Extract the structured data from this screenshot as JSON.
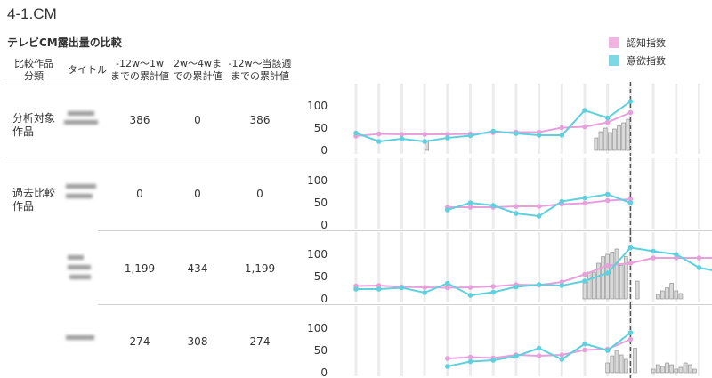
{
  "page_title": "4-1.CM",
  "section_title": "テレビCM露出量の比較",
  "legend": {
    "items": [
      {
        "label": "認知指数",
        "color": "#f0b4e0"
      },
      {
        "label": "意欲指数",
        "color": "#7dd8e4"
      }
    ]
  },
  "columns": {
    "category": "比較作品\n分類",
    "title": "タイトル",
    "total_12w_1w": "-12w〜1w\nまでの累計値",
    "total_2w_4w": "2w〜4wま\nでの累計値",
    "total_12w_current": "-12w〜当該週\nまでの累計値"
  },
  "rows": [
    {
      "category": "分析対象\n作品",
      "total_12w_1w": "386",
      "total_2w_4w": "0",
      "total_12w_current": "386"
    },
    {
      "category": "過去比較\n作品",
      "total_12w_1w": "0",
      "total_2w_4w": "0",
      "total_12w_current": "0"
    },
    {
      "category": "",
      "total_12w_1w": "1,199",
      "total_2w_4w": "434",
      "total_12w_current": "1,199"
    },
    {
      "category": "",
      "total_12w_1w": "274",
      "total_2w_4w": "308",
      "total_12w_current": "274"
    }
  ],
  "chart_data": [
    {
      "type": "line",
      "ylim": [
        0,
        130
      ],
      "yticks": [
        "0",
        "50",
        "100"
      ],
      "reference_week": 12,
      "series": [
        {
          "name": "認知指数",
          "color": "#e8a0dc",
          "x": [
            0,
            1,
            2,
            3,
            4,
            5,
            6,
            7,
            8,
            9,
            10,
            11,
            12
          ],
          "values": [
            32,
            37,
            36,
            36,
            36,
            37,
            40,
            41,
            41,
            51,
            53,
            63,
            85
          ]
        },
        {
          "name": "意欲指数",
          "color": "#5ed0de",
          "x": [
            0,
            1,
            2,
            3,
            4,
            5,
            6,
            7,
            8,
            9,
            10,
            11,
            12
          ],
          "values": [
            39,
            20,
            26,
            20,
            28,
            33,
            43,
            38,
            34,
            34,
            90,
            73,
            110
          ]
        }
      ],
      "bars": {
        "x": [
          3.1,
          10.5,
          10.7,
          10.9,
          11.1,
          11.3,
          11.5,
          11.7,
          11.9
        ],
        "values": [
          20,
          28,
          42,
          50,
          40,
          48,
          55,
          62,
          70
        ]
      }
    },
    {
      "type": "line",
      "ylim": [
        0,
        130
      ],
      "yticks": [
        "0",
        "50",
        "100"
      ],
      "reference_week": 12,
      "series": [
        {
          "name": "認知指数",
          "color": "#e8a0dc",
          "x": [
            4,
            5,
            6,
            7,
            8,
            9,
            10,
            11,
            12
          ],
          "values": [
            40,
            40,
            40,
            42,
            42,
            47,
            49,
            55,
            58
          ]
        },
        {
          "name": "意欲指数",
          "color": "#5ed0de",
          "x": [
            4,
            5,
            6,
            7,
            8,
            9,
            10,
            11,
            12
          ],
          "values": [
            34,
            50,
            44,
            26,
            20,
            53,
            61,
            69,
            50
          ]
        }
      ],
      "bars": {
        "x": [],
        "values": []
      }
    },
    {
      "type": "line",
      "ylim": [
        0,
        130
      ],
      "yticks": [
        "0",
        "50",
        "100"
      ],
      "reference_week": 12,
      "series": [
        {
          "name": "認知指数",
          "color": "#e8a0dc",
          "x": [
            0,
            1,
            2,
            3,
            4,
            5,
            6,
            7,
            8,
            9,
            10,
            11,
            12,
            13,
            14,
            15,
            16
          ],
          "values": [
            29,
            30,
            27,
            26,
            25,
            26,
            28,
            32,
            31,
            38,
            55,
            75,
            80,
            92,
            92,
            92,
            92
          ]
        },
        {
          "name": "意欲指数",
          "color": "#5ed0de",
          "x": [
            0,
            1,
            2,
            3,
            4,
            5,
            6,
            7,
            8,
            9,
            10,
            11,
            12,
            13,
            14,
            15,
            16
          ],
          "values": [
            22,
            22,
            25,
            14,
            35,
            8,
            15,
            27,
            32,
            30,
            40,
            58,
            115,
            107,
            100,
            70,
            60
          ]
        }
      ],
      "bars": {
        "x": [
          10.0,
          10.2,
          10.4,
          10.6,
          10.8,
          11.0,
          11.2,
          11.4,
          11.6,
          11.8,
          12.3,
          13.2,
          13.4,
          13.6,
          13.8,
          14.0,
          14.2
        ],
        "values": [
          40,
          60,
          60,
          80,
          95,
          100,
          105,
          112,
          75,
          95,
          40,
          10,
          18,
          25,
          35,
          18,
          12
        ]
      }
    },
    {
      "type": "line",
      "ylim": [
        0,
        130
      ],
      "yticks": [
        "0",
        "50",
        "100"
      ],
      "reference_week": 12,
      "series": [
        {
          "name": "認知指数",
          "color": "#e8a0dc",
          "x": [
            4,
            5,
            6,
            7,
            8,
            9,
            10,
            11,
            12
          ],
          "values": [
            32,
            35,
            33,
            40,
            38,
            40,
            51,
            53,
            75
          ]
        },
        {
          "name": "意欲指数",
          "color": "#5ed0de",
          "x": [
            4,
            5,
            6,
            7,
            8,
            9,
            10,
            11,
            12
          ],
          "values": [
            14,
            25,
            28,
            37,
            55,
            30,
            65,
            50,
            90
          ]
        }
      ],
      "bars": {
        "x": [
          11.0,
          11.2,
          11.4,
          11.6,
          11.8,
          12.2,
          13.0,
          13.2,
          13.4,
          13.6,
          13.8,
          14.0,
          14.2,
          14.4,
          14.6,
          14.8
        ],
        "values": [
          22,
          38,
          50,
          40,
          30,
          55,
          8,
          18,
          14,
          22,
          18,
          8,
          12,
          22,
          18,
          8
        ]
      }
    }
  ]
}
